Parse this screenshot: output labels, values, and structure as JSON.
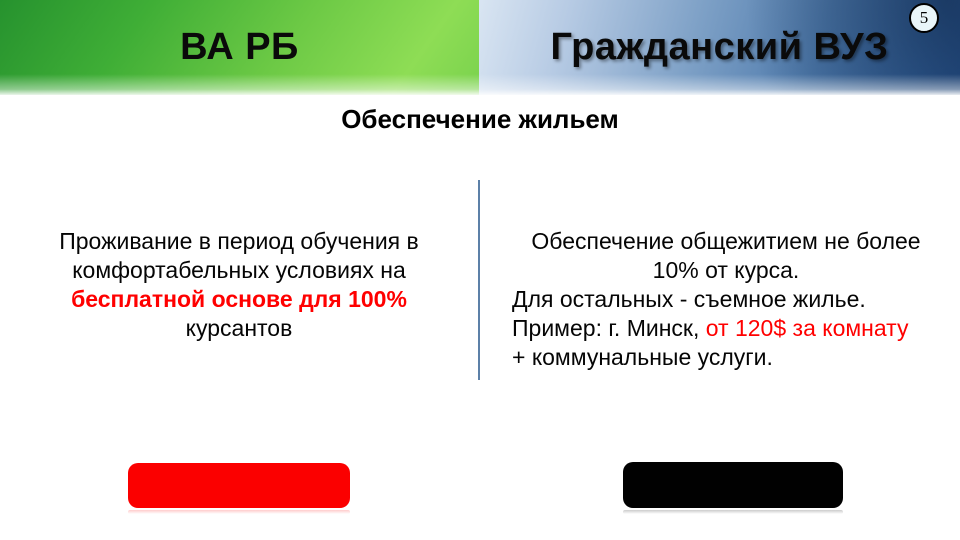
{
  "page_number": "5",
  "header": {
    "left_label": "ВА РБ",
    "right_label": "Гражданский ВУЗ"
  },
  "title": "Обеспечение жильем",
  "left_column": {
    "line1": "Проживание в период обучения в",
    "line2": "комфортабельных условиях на",
    "line3": "бесплатной основе для 100%",
    "line4": "курсантов"
  },
  "right_column": {
    "line1": "Обеспечение общежитием не более",
    "line2": "10% от курса.",
    "line3": "Для остальных - съемное жилье.",
    "line4_black": "Пример: г. Минск, ",
    "line4_red": "от 120$ за комнату",
    "line5": "+ коммунальные услуги."
  },
  "colors": {
    "accent_red": "#ff0000",
    "header_green_dark": "#26922e",
    "header_green_light": "#8edd55",
    "header_blue_dark": "#2a5690",
    "header_blue_light": "#d9e5f2",
    "divider_blue": "#5c80a8",
    "button_red": "#fb0000",
    "button_black": "#010101"
  }
}
